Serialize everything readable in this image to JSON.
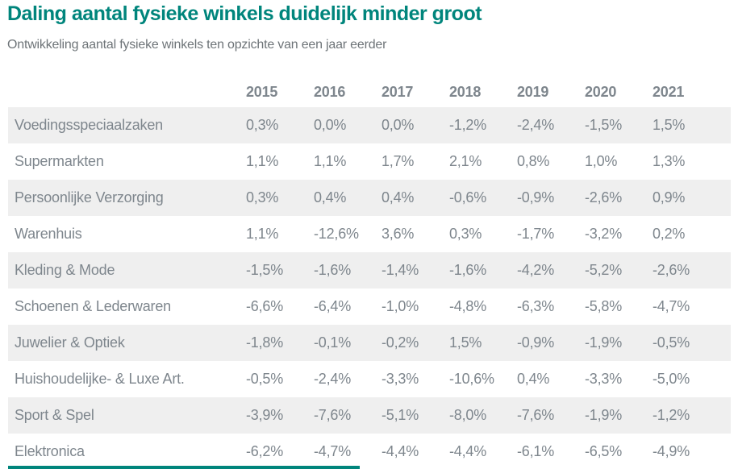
{
  "header": {
    "title": "Daling aantal fysieke winkels duidelijk minder groot",
    "subtitle": "Ontwikkeling aantal fysieke winkels ten opzichte van een jaar eerder"
  },
  "chart_data": {
    "type": "table",
    "title": "Daling aantal fysieke winkels duidelijk minder groot",
    "subtitle": "Ontwikkeling aantal fysieke winkels ten opzichte van een jaar eerder",
    "columns": [
      "2015",
      "2016",
      "2017",
      "2018",
      "2019",
      "2020",
      "2021"
    ],
    "rows": [
      {
        "label": "Voedingsspeciaalzaken",
        "values": [
          "0,3%",
          "0,0%",
          "0,0%",
          "-1,2%",
          "-2,4%",
          "-1,5%",
          "1,5%"
        ]
      },
      {
        "label": "Supermarkten",
        "values": [
          "1,1%",
          "1,1%",
          "1,7%",
          "2,1%",
          "0,8%",
          "1,0%",
          "1,3%"
        ]
      },
      {
        "label": "Persoonlijke Verzorging",
        "values": [
          "0,3%",
          "0,4%",
          "0,4%",
          "-0,6%",
          "-0,9%",
          "-2,6%",
          "0,9%"
        ]
      },
      {
        "label": "Warenhuis",
        "values": [
          "1,1%",
          "-12,6%",
          "3,6%",
          "0,3%",
          "-1,7%",
          "-3,2%",
          "0,2%"
        ]
      },
      {
        "label": "Kleding & Mode",
        "values": [
          "-1,5%",
          "-1,6%",
          "-1,4%",
          "-1,6%",
          "-4,2%",
          "-5,2%",
          "-2,6%"
        ]
      },
      {
        "label": "Schoenen & Lederwaren",
        "values": [
          "-6,6%",
          "-6,4%",
          "-1,0%",
          "-4,8%",
          "-6,3%",
          "-5,8%",
          "-4,7%"
        ]
      },
      {
        "label": "Juwelier & Optiek",
        "values": [
          "-1,8%",
          "-0,1%",
          "-0,2%",
          "1,5%",
          "-0,9%",
          "-1,9%",
          "-0,5%"
        ]
      },
      {
        "label": "Huishoudelijke- & Luxe Art.",
        "values": [
          "-0,5%",
          "-2,4%",
          "-3,3%",
          "-10,6%",
          "0,4%",
          "-3,3%",
          "-5,0%"
        ]
      },
      {
        "label": "Sport & Spel",
        "values": [
          "-3,9%",
          "-7,6%",
          "-5,1%",
          "-8,0%",
          "-7,6%",
          "-1,9%",
          "-1,2%"
        ]
      },
      {
        "label": "Elektronica",
        "values": [
          "-6,2%",
          "-4,7%",
          "-4,4%",
          "-4,4%",
          "-6,1%",
          "-6,5%",
          "-4,9%"
        ]
      }
    ],
    "value_format": "percent-change-vs-year-earlier, comma decimal",
    "layout": {
      "striped_rows": "odd rows shaded",
      "alignment": "columns left-aligned",
      "grid": "off"
    }
  },
  "colors": {
    "accent_teal": "#00857C",
    "subtitle_gray": "#6E7478",
    "column_header_gray": "#666F79",
    "body_text_gray": "#7E868D",
    "row_shade": "#EFEFEF",
    "background": "#FFFFFF"
  }
}
